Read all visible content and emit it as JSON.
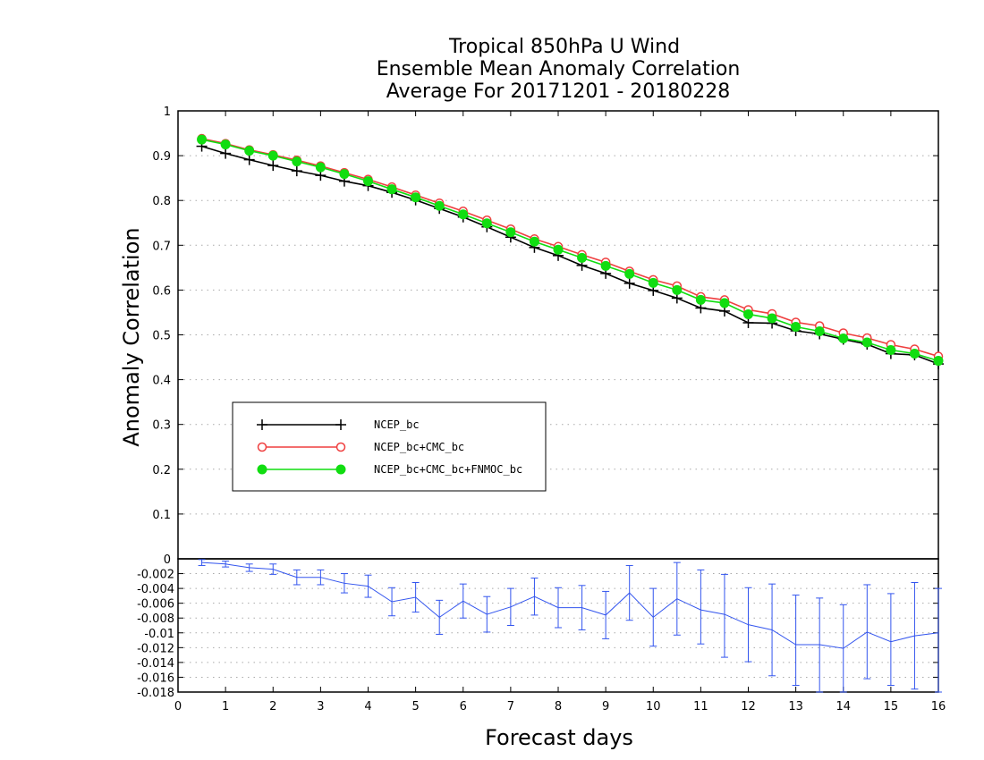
{
  "chart_data": [
    {
      "type": "line",
      "panel": "main",
      "title": [
        "Tropical 850hPa U Wind",
        "Ensemble Mean Anomaly Correlation",
        "Average For 20171201 - 20180228"
      ],
      "xlabel": "Forecast days",
      "ylabel": "Anomaly Correlation",
      "xlim": [
        0,
        16
      ],
      "ylim": [
        0,
        1
      ],
      "x_ticks": [
        "0",
        "1",
        "2",
        "3",
        "4",
        "5",
        "6",
        "7",
        "8",
        "9",
        "10",
        "11",
        "12",
        "13",
        "14",
        "15",
        "16"
      ],
      "y_ticks": [
        "0",
        "0.1",
        "0.2",
        "0.3",
        "0.4",
        "0.5",
        "0.6",
        "0.7",
        "0.8",
        "0.9",
        "1"
      ],
      "grid": "horizontal dotted",
      "legend_position": "middle-left",
      "x": [
        0.5,
        1,
        1.5,
        2,
        2.5,
        3,
        3.5,
        4,
        4.5,
        5,
        5.5,
        6,
        6.5,
        7,
        7.5,
        8,
        8.5,
        9,
        9.5,
        10,
        10.5,
        11,
        11.5,
        12,
        12.5,
        13,
        13.5,
        14,
        14.5,
        15,
        15.5,
        16
      ],
      "series": [
        {
          "name": "NCEP_bc",
          "color": "#000000",
          "marker": "plus",
          "values": [
            0.921,
            0.905,
            0.891,
            0.878,
            0.866,
            0.856,
            0.843,
            0.833,
            0.818,
            0.801,
            0.782,
            0.763,
            0.741,
            0.718,
            0.695,
            0.677,
            0.655,
            0.637,
            0.615,
            0.599,
            0.582,
            0.56,
            0.553,
            0.527,
            0.526,
            0.509,
            0.502,
            0.49,
            0.479,
            0.458,
            0.455,
            0.435
          ]
        },
        {
          "name": "NCEP_bc+CMC_bc",
          "color": "#ef3f3f",
          "marker": "open-circle",
          "values": [
            0.938,
            0.927,
            0.913,
            0.902,
            0.89,
            0.877,
            0.862,
            0.847,
            0.83,
            0.812,
            0.794,
            0.776,
            0.756,
            0.736,
            0.714,
            0.697,
            0.679,
            0.662,
            0.642,
            0.623,
            0.609,
            0.585,
            0.578,
            0.556,
            0.547,
            0.528,
            0.52,
            0.504,
            0.493,
            0.478,
            0.468,
            0.452
          ]
        },
        {
          "name": "NCEP_bc+CMC_bc+FNMOC_bc",
          "color": "#11dd11",
          "marker": "filled-circle",
          "values": [
            0.936,
            0.925,
            0.911,
            0.9,
            0.887,
            0.874,
            0.859,
            0.843,
            0.825,
            0.807,
            0.788,
            0.769,
            0.749,
            0.729,
            0.708,
            0.69,
            0.672,
            0.654,
            0.636,
            0.616,
            0.6,
            0.578,
            0.571,
            0.546,
            0.537,
            0.518,
            0.508,
            0.492,
            0.483,
            0.466,
            0.458,
            0.442
          ]
        }
      ]
    },
    {
      "type": "line",
      "panel": "difference",
      "xlabel": "Forecast days",
      "xlim": [
        0,
        16
      ],
      "ylim": [
        -0.018,
        0
      ],
      "y_ticks": [
        "-0.002",
        "-0.004",
        "-0.006",
        "-0.008",
        "-0.01",
        "-0.012",
        "-0.014",
        "-0.016",
        "-0.018"
      ],
      "grid": "horizontal dotted",
      "x": [
        0.5,
        1,
        1.5,
        2,
        2.5,
        3,
        3.5,
        4,
        4.5,
        5,
        5.5,
        6,
        6.5,
        7,
        7.5,
        8,
        8.5,
        9,
        9.5,
        10,
        10.5,
        11,
        11.5,
        12,
        12.5,
        13,
        13.5,
        14,
        14.5,
        15,
        15.5,
        16
      ],
      "series": [
        {
          "color": "#3355ee",
          "marker": "error-bars",
          "values": [
            -0.0005,
            -0.0007,
            -0.0012,
            -0.0014,
            -0.0025,
            -0.0025,
            -0.0033,
            -0.0037,
            -0.0058,
            -0.0052,
            -0.0079,
            -0.0057,
            -0.0075,
            -0.0065,
            -0.0051,
            -0.0066,
            -0.0066,
            -0.0076,
            -0.0046,
            -0.0079,
            -0.0054,
            -0.0069,
            -0.0075,
            -0.0089,
            -0.0096,
            -0.0116,
            -0.0116,
            -0.0121,
            -0.0099,
            -0.0112,
            -0.0104,
            -0.01
          ],
          "error_low": [
            -0.0009,
            -0.0011,
            -0.0017,
            -0.0021,
            -0.0035,
            -0.0035,
            -0.0046,
            -0.0052,
            -0.0077,
            -0.0072,
            -0.0102,
            -0.008,
            -0.0099,
            -0.009,
            -0.0076,
            -0.0093,
            -0.0096,
            -0.0108,
            -0.0083,
            -0.0118,
            -0.0103,
            -0.0115,
            -0.0133,
            -0.0139,
            -0.0158,
            -0.0171,
            -0.018,
            -0.018,
            -0.0162,
            -0.0171,
            -0.0176,
            -0.018
          ],
          "error_high": [
            -0.0001,
            -0.0003,
            -0.0007,
            -0.0007,
            -0.0015,
            -0.0015,
            -0.002,
            -0.0022,
            -0.0039,
            -0.0032,
            -0.0056,
            -0.0034,
            -0.0051,
            -0.004,
            -0.0026,
            -0.0039,
            -0.0036,
            -0.0044,
            -0.0009,
            -0.004,
            -0.0005,
            -0.0015,
            -0.0021,
            -0.0039,
            -0.0034,
            -0.0049,
            -0.0053,
            -0.0062,
            -0.0035,
            -0.0047,
            -0.0032,
            -0.004
          ]
        }
      ]
    }
  ]
}
